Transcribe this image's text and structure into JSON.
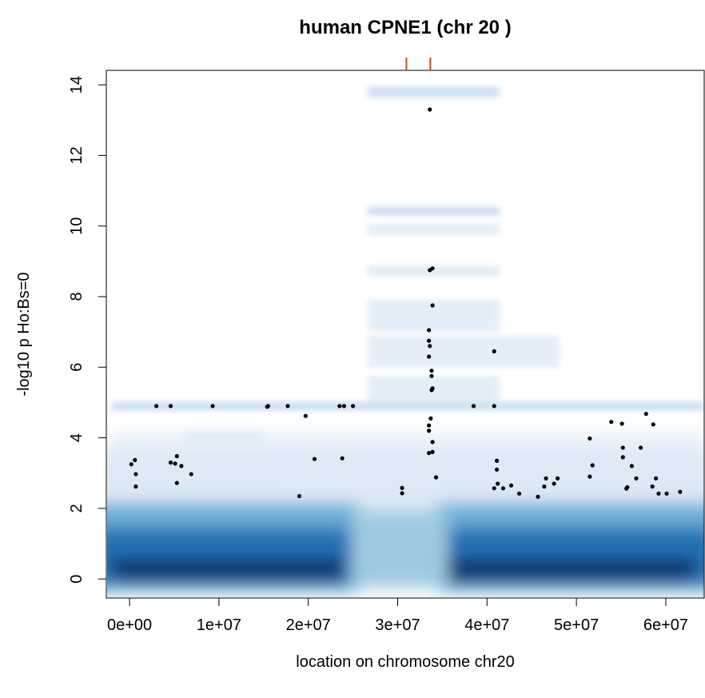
{
  "chart_data": {
    "type": "scatter",
    "title": "human CPNE1 (chr 20 )",
    "x_label": "location on chromosome chr20",
    "y_label": "-log10 p Ho:Bs=0",
    "point_color": "#000000",
    "gene_positions": [
      30980000,
      33660000
    ],
    "gene_color": "#d2441c",
    "xlim": [
      -2600000,
      64300000
    ],
    "ylim": [
      -0.54,
      14.41
    ],
    "xticks": [
      {
        "value": 0,
        "label": "0e+00"
      },
      {
        "value": 10000000,
        "label": "1e+07"
      },
      {
        "value": 20000000,
        "label": "2e+07"
      },
      {
        "value": 30000000,
        "label": "3e+07"
      },
      {
        "value": 40000000,
        "label": "4e+07"
      },
      {
        "value": 50000000,
        "label": "5e+07"
      },
      {
        "value": 60000000,
        "label": "6e+07"
      }
    ],
    "yticks": [
      0,
      2,
      4,
      6,
      8,
      10,
      12,
      14
    ],
    "x": [
      200000,
      600000,
      700000,
      700000,
      3000000,
      4600000,
      4600000,
      5100000,
      5300000,
      5300000,
      5800000,
      6900000,
      9300000,
      15400000,
      15500000,
      17700000,
      19000000,
      19700000,
      20700000,
      23500000,
      24000000,
      23800000,
      25000000,
      30500000,
      30500000,
      33600000,
      33900000,
      33600000,
      33900000,
      33500000,
      33500000,
      33600000,
      33500000,
      33800000,
      33800000,
      33900000,
      33800000,
      33700000,
      33500000,
      33500000,
      33900000,
      33500000,
      33900000,
      34300000,
      38500000,
      40800000,
      40800000,
      41100000,
      41100000,
      41200000,
      40800000,
      41800000,
      42700000,
      43600000,
      45700000,
      46400000,
      46600000,
      47500000,
      47900000,
      51500000,
      51800000,
      51500000,
      53900000,
      55100000,
      55200000,
      55200000,
      55700000,
      55600000,
      56200000,
      56700000,
      57200000,
      57800000,
      58600000,
      58500000,
      58900000,
      59200000,
      60100000,
      61600000
    ],
    "values": [
      3.25,
      3.37,
      2.97,
      2.62,
      4.9,
      4.9,
      3.3,
      3.27,
      3.48,
      2.72,
      3.2,
      2.97,
      4.9,
      4.88,
      4.9,
      4.9,
      2.35,
      4.62,
      3.4,
      4.9,
      4.9,
      3.42,
      4.9,
      2.58,
      2.43,
      13.3,
      8.8,
      8.75,
      7.75,
      7.05,
      6.75,
      6.6,
      6.3,
      5.9,
      5.75,
      5.4,
      5.35,
      4.55,
      4.35,
      4.2,
      3.88,
      3.57,
      3.6,
      2.88,
      4.9,
      6.45,
      4.9,
      3.35,
      3.1,
      2.7,
      2.57,
      2.57,
      2.65,
      2.42,
      2.33,
      2.62,
      2.85,
      2.7,
      2.85,
      3.98,
      3.22,
      2.9,
      4.45,
      4.4,
      3.72,
      3.45,
      2.6,
      2.56,
      3.2,
      2.85,
      3.72,
      4.68,
      4.38,
      2.62,
      2.85,
      2.42,
      2.42,
      2.47
    ]
  }
}
